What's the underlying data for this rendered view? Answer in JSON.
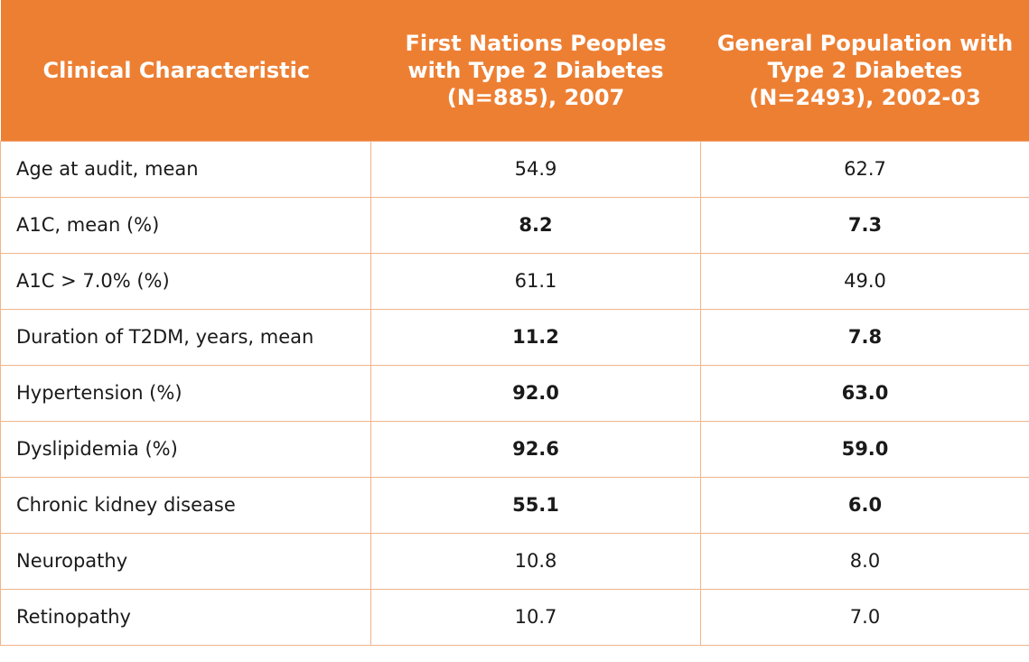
{
  "header": {
    "col1": [
      "Clinical Characteristic"
    ],
    "col2": [
      "First Nations Peoples",
      "with Type 2 Diabetes",
      "(N=885), 2007"
    ],
    "col3": [
      "General Population with",
      "Type 2 Diabetes",
      "(N=2493), 2002-03"
    ]
  },
  "rows": [
    {
      "label": "Age at audit, mean",
      "fn": "54.9",
      "gp": "62.7",
      "bold": false
    },
    {
      "label": "A1C, mean (%)",
      "fn": "8.2",
      "gp": "7.3",
      "bold": true
    },
    {
      "label": "A1C > 7.0% (%)",
      "fn": "61.1",
      "gp": "49.0",
      "bold": false
    },
    {
      "label": "Duration of T2DM, years, mean",
      "fn": "11.2",
      "gp": "7.8",
      "bold": true
    },
    {
      "label": "Hypertension (%)",
      "fn": "92.0",
      "gp": "63.0",
      "bold": true
    },
    {
      "label": "Dyslipidemia (%)",
      "fn": "92.6",
      "gp": "59.0",
      "bold": true
    },
    {
      "label": "Chronic kidney disease",
      "fn": "55.1",
      "gp": "6.0",
      "bold": true
    },
    {
      "label": "Neuropathy",
      "fn": "10.8",
      "gp": "8.0",
      "bold": false
    },
    {
      "label": "Retinopathy",
      "fn": "10.7",
      "gp": "7.0",
      "bold": false
    }
  ],
  "colors": {
    "header_bg": "#ed7f33",
    "header_text": "#ffffff",
    "border": "#f2b48a"
  }
}
